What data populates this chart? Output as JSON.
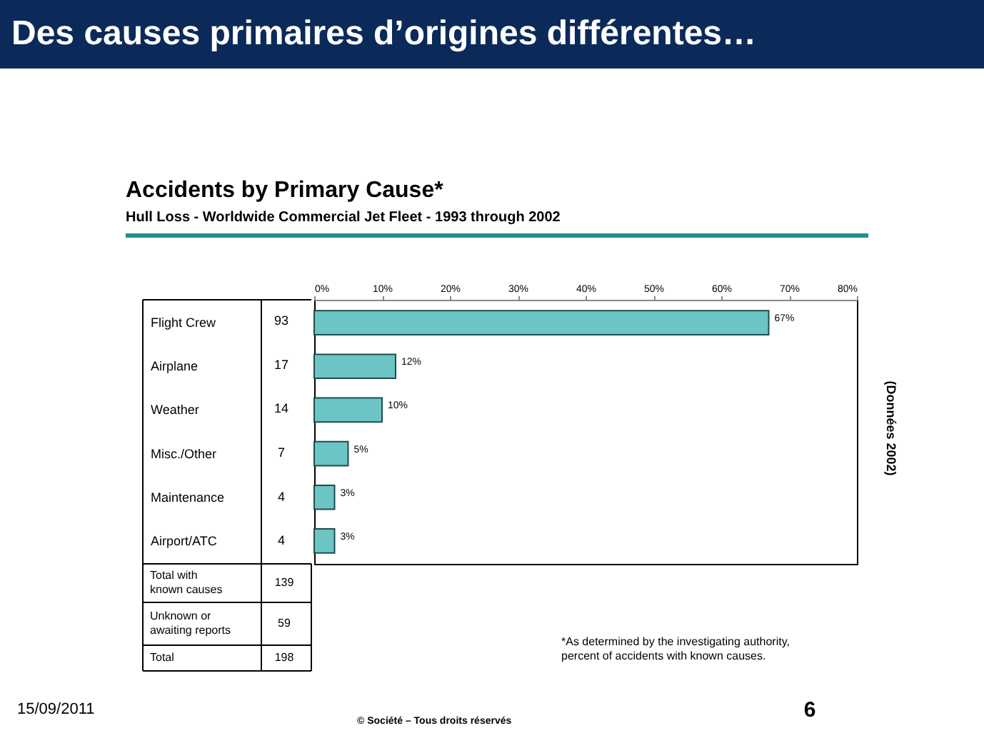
{
  "chart_data": {
    "type": "bar",
    "orientation": "horizontal",
    "title": "Accidents by Primary Cause*",
    "subtitle": "Hull Loss - Worldwide Commercial Jet Fleet - 1993 through 2002",
    "categories": [
      "Flight Crew",
      "Airplane",
      "Weather",
      "Misc./Other",
      "Maintenance",
      "Airport/ATC"
    ],
    "values": [
      67,
      12,
      10,
      5,
      3,
      3
    ],
    "value_labels": [
      "67%",
      "12%",
      "10%",
      "5%",
      "3%",
      "3%"
    ],
    "color": "#6cc4c4",
    "xlim": [
      0,
      80
    ],
    "xticks": [
      {
        "value": 0,
        "label": "0%"
      },
      {
        "value": 10,
        "label": "10%"
      },
      {
        "value": 20,
        "label": "20%"
      },
      {
        "value": 30,
        "label": "30%"
      },
      {
        "value": 40,
        "label": "40%"
      },
      {
        "value": 50,
        "label": "50%"
      },
      {
        "value": 60,
        "label": "60%"
      },
      {
        "value": 70,
        "label": "70%"
      },
      {
        "value": 80,
        "label": "80%"
      }
    ],
    "grid": false,
    "annotations": [
      "Des causes primaires d’origines différentes…",
      "93",
      "17",
      "14",
      "7",
      "4",
      "4",
      "Total with\nknown causes",
      "139",
      "Unknown or\nawaiting reports",
      "59",
      "Total",
      "198",
      "*As determined by the investigating authority,\n percent of accidents with known causes.",
      "(Données 2002)",
      "15/09/2011",
      "© Société – Tous droits réservés",
      "6"
    ]
  }
}
